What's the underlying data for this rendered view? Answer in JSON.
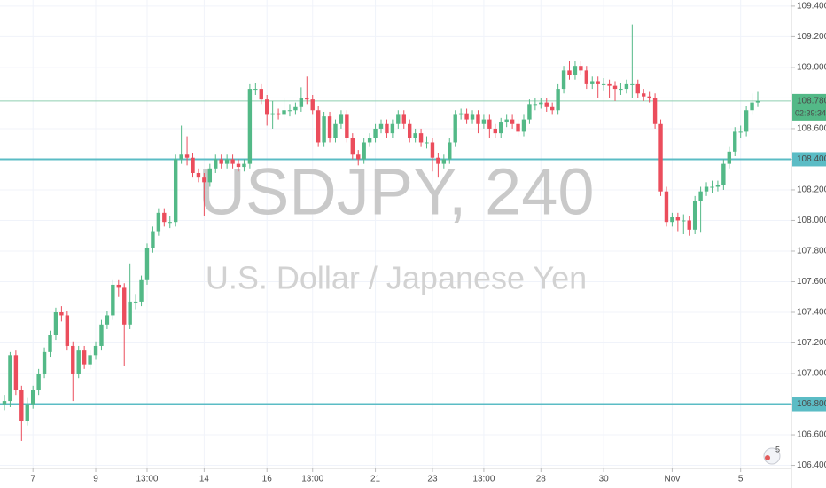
{
  "chart_data": {
    "type": "candlestick",
    "symbol": "USDJPY, 240",
    "description": "U.S. Dollar / Japanese Yen",
    "up_color": "#53b987",
    "down_color": "#eb4d5c",
    "level_color": "#5bbcc5",
    "grid": true,
    "ylim": [
      106.38,
      109.44
    ],
    "yticks": [
      {
        "value": 106.4,
        "label": "106.400"
      },
      {
        "value": 106.6,
        "label": "106.600"
      },
      {
        "value": 106.8,
        "label": "106.800"
      },
      {
        "value": 107.0,
        "label": "107.000"
      },
      {
        "value": 107.2,
        "label": "107.200"
      },
      {
        "value": 107.4,
        "label": "107.400"
      },
      {
        "value": 107.6,
        "label": "107.600"
      },
      {
        "value": 107.8,
        "label": "107.800"
      },
      {
        "value": 108.0,
        "label": "108.000"
      },
      {
        "value": 108.2,
        "label": "108.200"
      },
      {
        "value": 108.4,
        "label": "108.400"
      },
      {
        "value": 108.6,
        "label": "108.600"
      },
      {
        "value": 108.8,
        "label": "108.800"
      },
      {
        "value": 109.0,
        "label": "109.000"
      },
      {
        "value": 109.2,
        "label": "109.200"
      },
      {
        "value": 109.4,
        "label": "109.400"
      }
    ],
    "xticks": [
      {
        "value": 5,
        "label": "7"
      },
      {
        "value": 16,
        "label": "9"
      },
      {
        "value": 25,
        "label": "13:00"
      },
      {
        "value": 35,
        "label": "14"
      },
      {
        "value": 46,
        "label": "16"
      },
      {
        "value": 54,
        "label": "13:00"
      },
      {
        "value": 65,
        "label": "21"
      },
      {
        "value": 75,
        "label": "23"
      },
      {
        "value": 84,
        "label": "13:00"
      },
      {
        "value": 94,
        "label": "28"
      },
      {
        "value": 105,
        "label": "30"
      },
      {
        "value": 117,
        "label": "Nov"
      },
      {
        "value": 129,
        "label": "5"
      }
    ],
    "levels": [
      108.4,
      106.8
    ],
    "last": {
      "value": 108.78,
      "label": "108.780",
      "countdown": "02:39:34"
    },
    "badge": "5",
    "ohlc": [
      [
        106.8,
        106.86,
        106.76,
        106.82
      ],
      [
        106.82,
        107.14,
        106.78,
        107.12
      ],
      [
        107.12,
        107.15,
        106.86,
        106.89
      ],
      [
        106.89,
        106.92,
        106.56,
        106.69
      ],
      [
        106.69,
        106.84,
        106.66,
        106.8
      ],
      [
        106.8,
        106.92,
        106.77,
        106.89
      ],
      [
        106.89,
        107.03,
        106.86,
        107.0
      ],
      [
        107.0,
        107.17,
        106.97,
        107.14
      ],
      [
        107.14,
        107.28,
        107.11,
        107.25
      ],
      [
        107.25,
        107.43,
        107.22,
        107.4
      ],
      [
        107.4,
        107.44,
        107.34,
        107.38
      ],
      [
        107.38,
        107.41,
        107.15,
        107.18
      ],
      [
        107.18,
        107.21,
        106.82,
        107.0
      ],
      [
        107.0,
        107.18,
        106.97,
        107.15
      ],
      [
        107.15,
        107.18,
        107.03,
        107.06
      ],
      [
        107.06,
        107.15,
        107.03,
        107.12
      ],
      [
        107.12,
        107.21,
        107.09,
        107.18
      ],
      [
        107.18,
        107.35,
        107.15,
        107.32
      ],
      [
        107.32,
        107.41,
        107.29,
        107.38
      ],
      [
        107.38,
        107.61,
        107.35,
        107.58
      ],
      [
        107.58,
        107.61,
        107.5,
        107.56
      ],
      [
        107.56,
        107.59,
        107.05,
        107.32
      ],
      [
        107.32,
        107.72,
        107.29,
        107.47
      ],
      [
        107.47,
        107.52,
        107.42,
        107.47
      ],
      [
        107.47,
        107.64,
        107.44,
        107.61
      ],
      [
        107.61,
        107.85,
        107.58,
        107.82
      ],
      [
        107.82,
        107.96,
        107.79,
        107.93
      ],
      [
        107.93,
        108.08,
        107.9,
        108.05
      ],
      [
        108.05,
        108.08,
        107.96,
        107.99
      ],
      [
        107.99,
        108.03,
        107.95,
        107.99
      ],
      [
        107.99,
        108.43,
        107.96,
        108.4
      ],
      [
        108.4,
        108.62,
        108.37,
        108.43
      ],
      [
        108.43,
        108.55,
        108.36,
        108.41
      ],
      [
        108.41,
        108.44,
        108.28,
        108.31
      ],
      [
        108.31,
        108.34,
        108.25,
        108.28
      ],
      [
        108.28,
        108.31,
        108.03,
        108.25
      ],
      [
        108.25,
        108.37,
        108.22,
        108.34
      ],
      [
        108.34,
        108.43,
        108.31,
        108.4
      ],
      [
        108.4,
        108.43,
        108.34,
        108.37
      ],
      [
        108.37,
        108.43,
        108.34,
        108.4
      ],
      [
        108.4,
        108.43,
        108.34,
        108.37
      ],
      [
        108.37,
        108.4,
        108.32,
        108.35
      ],
      [
        108.35,
        108.4,
        108.32,
        108.37
      ],
      [
        108.37,
        108.89,
        108.34,
        108.86
      ],
      [
        108.86,
        108.9,
        108.82,
        108.86
      ],
      [
        108.86,
        108.89,
        108.76,
        108.79
      ],
      [
        108.79,
        108.82,
        108.62,
        108.69
      ],
      [
        108.69,
        108.78,
        108.6,
        108.7
      ],
      [
        108.7,
        108.73,
        108.66,
        108.69
      ],
      [
        108.69,
        108.8,
        108.66,
        108.72
      ],
      [
        108.72,
        108.76,
        108.68,
        108.72
      ],
      [
        108.72,
        108.77,
        108.69,
        108.74
      ],
      [
        108.74,
        108.87,
        108.71,
        108.8
      ],
      [
        108.8,
        108.94,
        108.76,
        108.79
      ],
      [
        108.79,
        108.82,
        108.69,
        108.72
      ],
      [
        108.72,
        108.75,
        108.48,
        108.51
      ],
      [
        108.51,
        108.71,
        108.48,
        108.68
      ],
      [
        108.68,
        108.71,
        108.51,
        108.54
      ],
      [
        108.54,
        108.66,
        108.51,
        108.63
      ],
      [
        108.63,
        108.72,
        108.6,
        108.69
      ],
      [
        108.69,
        108.72,
        108.51,
        108.54
      ],
      [
        108.54,
        108.57,
        108.4,
        108.43
      ],
      [
        108.43,
        108.46,
        108.36,
        108.4
      ],
      [
        108.4,
        108.54,
        108.37,
        108.51
      ],
      [
        108.51,
        108.57,
        108.48,
        108.54
      ],
      [
        108.54,
        108.63,
        108.51,
        108.6
      ],
      [
        108.6,
        108.66,
        108.57,
        108.63
      ],
      [
        108.63,
        108.66,
        108.54,
        108.57
      ],
      [
        108.57,
        108.66,
        108.54,
        108.63
      ],
      [
        108.63,
        108.72,
        108.6,
        108.69
      ],
      [
        108.69,
        108.72,
        108.6,
        108.63
      ],
      [
        108.63,
        108.66,
        108.51,
        108.54
      ],
      [
        108.54,
        108.6,
        108.51,
        108.57
      ],
      [
        108.57,
        108.6,
        108.48,
        108.51
      ],
      [
        108.51,
        108.55,
        108.47,
        108.51
      ],
      [
        108.51,
        108.54,
        108.32,
        108.41
      ],
      [
        108.41,
        108.44,
        108.28,
        108.37
      ],
      [
        108.37,
        108.43,
        108.34,
        108.4
      ],
      [
        108.4,
        108.54,
        108.37,
        108.51
      ],
      [
        108.51,
        108.72,
        108.48,
        108.69
      ],
      [
        108.69,
        108.73,
        108.66,
        108.7
      ],
      [
        108.7,
        108.73,
        108.63,
        108.66
      ],
      [
        108.66,
        108.72,
        108.63,
        108.69
      ],
      [
        108.69,
        108.72,
        108.57,
        108.63
      ],
      [
        108.63,
        108.69,
        108.6,
        108.66
      ],
      [
        108.66,
        108.69,
        108.54,
        108.6
      ],
      [
        108.6,
        108.63,
        108.54,
        108.57
      ],
      [
        108.57,
        108.67,
        108.54,
        108.64
      ],
      [
        108.64,
        108.69,
        108.61,
        108.66
      ],
      [
        108.66,
        108.69,
        108.6,
        108.63
      ],
      [
        108.63,
        108.66,
        108.55,
        108.58
      ],
      [
        108.58,
        108.69,
        108.55,
        108.66
      ],
      [
        108.66,
        108.79,
        108.63,
        108.76
      ],
      [
        108.76,
        108.8,
        108.72,
        108.76
      ],
      [
        108.76,
        108.8,
        108.73,
        108.77
      ],
      [
        108.77,
        108.8,
        108.71,
        108.74
      ],
      [
        108.74,
        108.77,
        108.69,
        108.72
      ],
      [
        108.72,
        108.89,
        108.69,
        108.86
      ],
      [
        108.86,
        109.01,
        108.83,
        108.98
      ],
      [
        108.98,
        109.04,
        108.92,
        108.95
      ],
      [
        108.95,
        109.04,
        108.92,
        109.01
      ],
      [
        109.01,
        109.04,
        108.95,
        108.98
      ],
      [
        108.98,
        109.01,
        108.86,
        108.89
      ],
      [
        108.89,
        108.94,
        108.86,
        108.91
      ],
      [
        108.91,
        108.94,
        108.8,
        108.89
      ],
      [
        108.89,
        108.93,
        108.85,
        108.89
      ],
      [
        108.89,
        108.92,
        108.8,
        108.88
      ],
      [
        108.88,
        108.91,
        108.78,
        108.86
      ],
      [
        108.86,
        108.9,
        108.82,
        108.86
      ],
      [
        108.86,
        108.92,
        108.83,
        108.89
      ],
      [
        108.89,
        109.28,
        108.8,
        108.89
      ],
      [
        108.89,
        108.92,
        108.8,
        108.83
      ],
      [
        108.83,
        108.86,
        108.78,
        108.81
      ],
      [
        108.81,
        108.84,
        108.77,
        108.8
      ],
      [
        108.8,
        108.83,
        108.6,
        108.63
      ],
      [
        108.63,
        108.66,
        108.16,
        108.19
      ],
      [
        108.19,
        108.22,
        107.96,
        107.99
      ],
      [
        107.99,
        108.05,
        107.96,
        108.02
      ],
      [
        108.02,
        108.05,
        107.93,
        108.0
      ],
      [
        108.0,
        108.04,
        107.91,
        108.0
      ],
      [
        108.0,
        108.03,
        107.9,
        107.94
      ],
      [
        107.94,
        108.16,
        107.91,
        108.13
      ],
      [
        108.13,
        108.22,
        107.92,
        108.19
      ],
      [
        108.19,
        108.25,
        108.16,
        108.22
      ],
      [
        108.22,
        108.26,
        108.18,
        108.22
      ],
      [
        108.22,
        108.26,
        108.19,
        108.23
      ],
      [
        108.23,
        108.4,
        108.2,
        108.37
      ],
      [
        108.37,
        108.48,
        108.34,
        108.45
      ],
      [
        108.45,
        108.61,
        108.42,
        108.58
      ],
      [
        108.58,
        108.62,
        108.54,
        108.58
      ],
      [
        108.58,
        108.75,
        108.55,
        108.72
      ],
      [
        108.72,
        108.83,
        108.69,
        108.77
      ],
      [
        108.77,
        108.84,
        108.74,
        108.78
      ]
    ]
  }
}
